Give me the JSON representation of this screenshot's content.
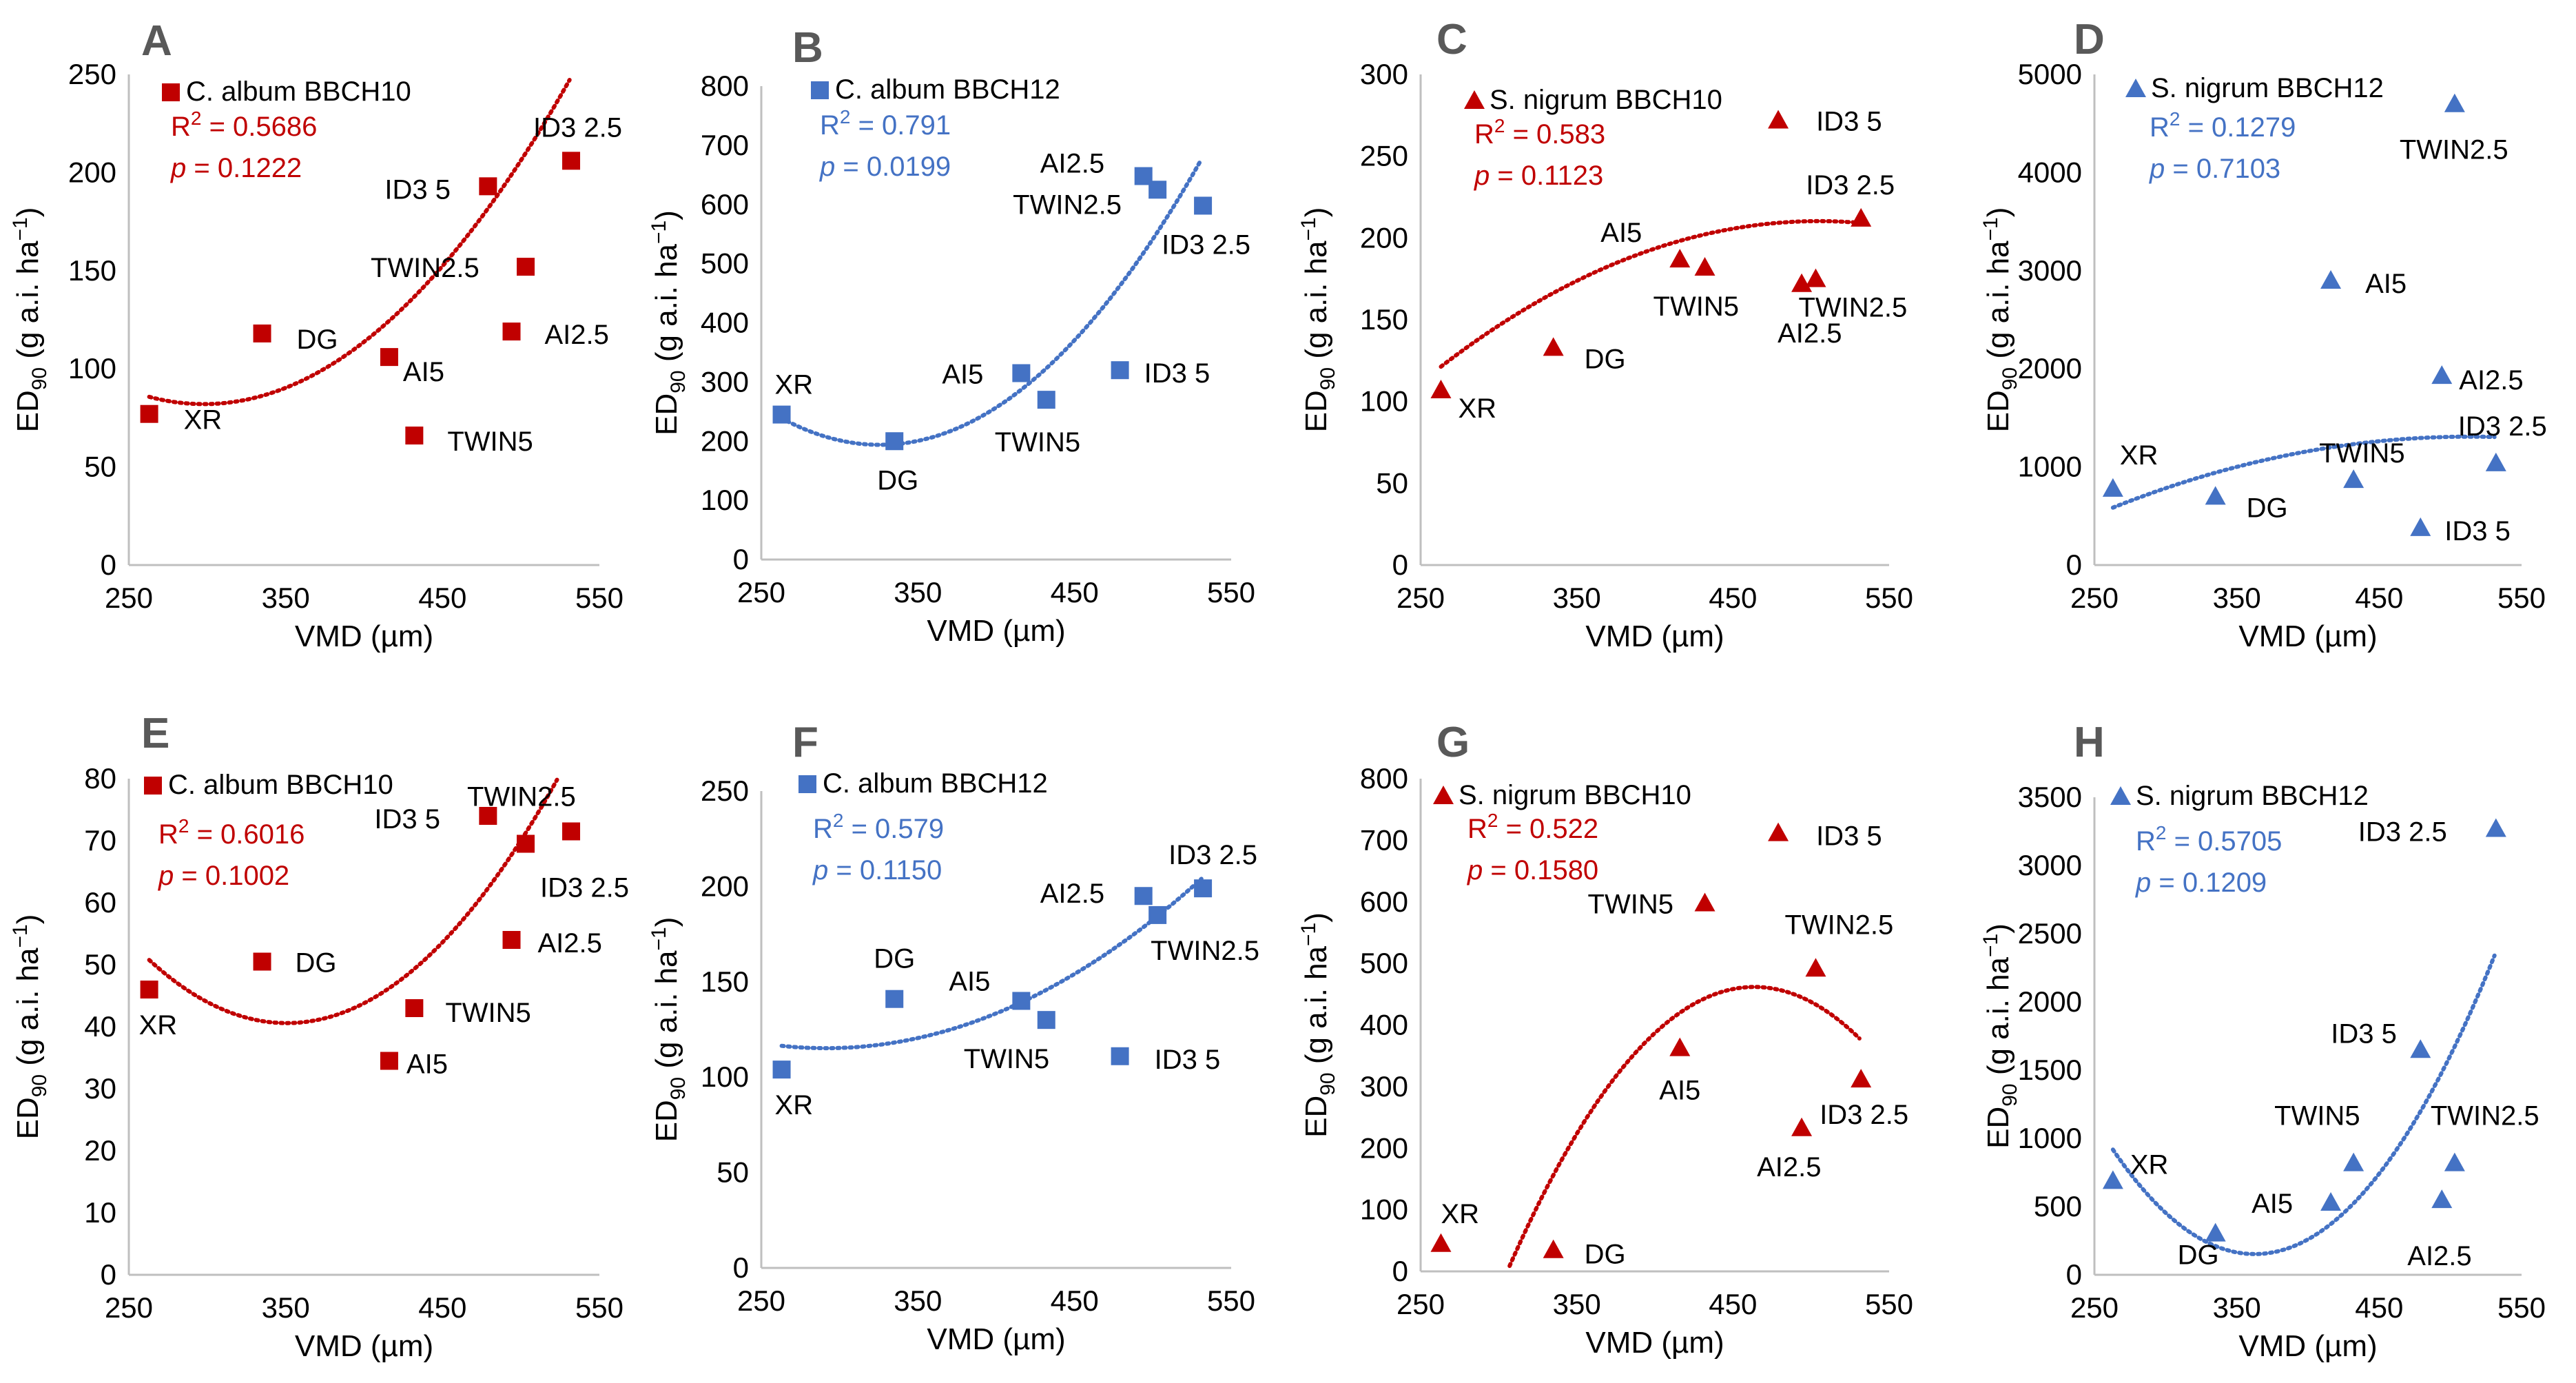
{
  "colors": {
    "red": "#c00000",
    "blue": "#4472c4",
    "axis": "#bfbfbf"
  },
  "chart_data": [
    {
      "panel": "A",
      "type": "scatter",
      "marker": "square",
      "color": "red",
      "legend": "C. album BBCH10",
      "r2_label": "R",
      "r2_value": " = 0.5686",
      "p_label": "p",
      "p_value": " = 0.1222",
      "xlabel": "VMD (µm)",
      "ylabel_main": "ED",
      "ylabel_sub": "90",
      "ylabel_rest": " (g a.i. ha",
      "ylabel_exp": "−1",
      "ylabel_close": ")",
      "xlim": [
        250,
        550
      ],
      "xticks": [
        "250",
        "350",
        "450",
        "550"
      ],
      "ylim": [
        0,
        250
      ],
      "yticks": [
        "0",
        "50",
        "100",
        "150",
        "200",
        "250"
      ],
      "points": [
        {
          "x": 263,
          "y": 77,
          "label": "XR"
        },
        {
          "x": 335,
          "y": 118,
          "label": "DG"
        },
        {
          "x": 416,
          "y": 106,
          "label": "AI5"
        },
        {
          "x": 432,
          "y": 66,
          "label": "TWIN5"
        },
        {
          "x": 479,
          "y": 193,
          "label": "ID3 5"
        },
        {
          "x": 494,
          "y": 119,
          "label": "AI2.5"
        },
        {
          "x": 503,
          "y": 152,
          "label": "TWIN2.5"
        },
        {
          "x": 532,
          "y": 206,
          "label": "ID3 2.5"
        }
      ],
      "trend": [
        0.003036,
        -1.808,
        351.2
      ]
    },
    {
      "panel": "B",
      "type": "scatter",
      "marker": "square",
      "color": "blue",
      "legend": "C. album BBCH12",
      "r2_label": "R",
      "r2_value": " = 0.791",
      "p_label": "p",
      "p_value": " = 0.0199",
      "xlabel": "VMD (µm)",
      "ylabel_main": "ED",
      "ylabel_sub": "90",
      "ylabel_rest": " (g a.i. ha",
      "ylabel_exp": "−1",
      "ylabel_close": ")",
      "xlim": [
        250,
        550
      ],
      "xticks": [
        "250",
        "350",
        "450",
        "550"
      ],
      "ylim": [
        0,
        800
      ],
      "yticks": [
        "0",
        "100",
        "200",
        "300",
        "400",
        "500",
        "600",
        "700",
        "800"
      ],
      "points": [
        {
          "x": 263,
          "y": 245,
          "label": "XR"
        },
        {
          "x": 335,
          "y": 200,
          "label": "DG"
        },
        {
          "x": 416,
          "y": 315,
          "label": "AI5"
        },
        {
          "x": 432,
          "y": 270,
          "label": "TWIN5"
        },
        {
          "x": 479,
          "y": 320,
          "label": "ID3 5"
        },
        {
          "x": 494,
          "y": 648,
          "label": "AI2.5"
        },
        {
          "x": 503,
          "y": 625,
          "label": "TWIN2.5"
        },
        {
          "x": 532,
          "y": 598,
          "label": "ID3 2.5"
        }
      ],
      "trend": [
        0.01145,
        -7.459,
        1408.6
      ]
    },
    {
      "panel": "C",
      "type": "scatter",
      "marker": "triangle",
      "color": "red",
      "legend": "S. nigrum BBCH10",
      "r2_label": "R",
      "r2_value": " = 0.583",
      "p_label": "p",
      "p_value": " = 0.1123",
      "xlabel": "VMD (µm)",
      "ylabel_main": "ED",
      "ylabel_sub": "90",
      "ylabel_rest": " (g a.i. ha",
      "ylabel_exp": "−1",
      "ylabel_close": ")",
      "xlim": [
        250,
        550
      ],
      "xticks": [
        "250",
        "350",
        "450",
        "550"
      ],
      "ylim": [
        0,
        300
      ],
      "yticks": [
        "0",
        "50",
        "100",
        "150",
        "200",
        "250",
        "300"
      ],
      "points": [
        {
          "x": 263,
          "y": 107,
          "label": "XR"
        },
        {
          "x": 335,
          "y": 133,
          "label": "DG"
        },
        {
          "x": 416,
          "y": 187,
          "label": "AI5"
        },
        {
          "x": 432,
          "y": 182,
          "label": "TWIN5"
        },
        {
          "x": 479,
          "y": 272,
          "label": "ID3 5"
        },
        {
          "x": 494,
          "y": 172,
          "label": "AI2.5"
        },
        {
          "x": 503,
          "y": 175,
          "label": "TWIN2.5"
        },
        {
          "x": 532,
          "y": 212,
          "label": "ID3 2.5"
        }
      ],
      "trend": [
        -0.001518,
        1.5335,
        -177.0
      ]
    },
    {
      "panel": "D",
      "type": "scatter",
      "marker": "triangle",
      "color": "blue",
      "legend": "S. nigrum BBCH12",
      "r2_label": "R",
      "r2_value": " = 0.1279",
      "p_label": "p",
      "p_value": " = 0.7103",
      "xlabel": "VMD (µm)",
      "ylabel_main": "ED",
      "ylabel_sub": "90",
      "ylabel_rest": " (g a.i. ha",
      "ylabel_exp": "−1",
      "ylabel_close": ")",
      "xlim": [
        250,
        550
      ],
      "xticks": [
        "250",
        "350",
        "450",
        "550"
      ],
      "ylim": [
        0,
        5000
      ],
      "yticks": [
        "0",
        "1000",
        "2000",
        "3000",
        "4000",
        "5000"
      ],
      "points": [
        {
          "x": 263,
          "y": 780,
          "label": "XR"
        },
        {
          "x": 335,
          "y": 700,
          "label": "DG"
        },
        {
          "x": 416,
          "y": 2900,
          "label": "AI5"
        },
        {
          "x": 432,
          "y": 870,
          "label": "TWIN5"
        },
        {
          "x": 479,
          "y": 380,
          "label": "ID3 5"
        },
        {
          "x": 494,
          "y": 1930,
          "label": "AI2.5"
        },
        {
          "x": 503,
          "y": 4700,
          "label": "TWIN2.5"
        },
        {
          "x": 532,
          "y": 1040,
          "label": "ID3 2.5"
        }
      ],
      "trend": [
        -0.01153,
        11.84,
        -1731.2
      ]
    },
    {
      "panel": "E",
      "type": "scatter",
      "marker": "square",
      "color": "red",
      "legend": "C. album BBCH10",
      "r2_label": "R",
      "r2_value": " = 0.6016",
      "p_label": "p",
      "p_value": " = 0.1002",
      "xlabel": "VMD (µm)",
      "ylabel_main": "ED",
      "ylabel_sub": "90",
      "ylabel_rest": " (g a.i. ha",
      "ylabel_exp": "−1",
      "ylabel_close": ")",
      "xlim": [
        250,
        550
      ],
      "xticks": [
        "250",
        "350",
        "450",
        "550"
      ],
      "ylim": [
        0,
        80
      ],
      "yticks": [
        "0",
        "10",
        "20",
        "30",
        "40",
        "50",
        "60",
        "70",
        "80"
      ],
      "points": [
        {
          "x": 263,
          "y": 46,
          "label": "XR"
        },
        {
          "x": 335,
          "y": 50.5,
          "label": "DG"
        },
        {
          "x": 416,
          "y": 34.5,
          "label": "AI5"
        },
        {
          "x": 432,
          "y": 43,
          "label": "TWIN5"
        },
        {
          "x": 479,
          "y": 74,
          "label": "ID3 5"
        },
        {
          "x": 494,
          "y": 54,
          "label": "AI2.5"
        },
        {
          "x": 503,
          "y": 69.5,
          "label": "TWIN2.5"
        },
        {
          "x": 532,
          "y": 71.5,
          "label": "ID3 2.5"
        }
      ],
      "trend": [
        0.001322,
        -0.9273,
        203.2
      ]
    },
    {
      "panel": "F",
      "type": "scatter",
      "marker": "square",
      "color": "blue",
      "legend": "C. album BBCH12",
      "r2_label": "R",
      "r2_value": " = 0.579",
      "p_label": "p",
      "p_value": " = 0.1150",
      "xlabel": "VMD (µm)",
      "ylabel_main": "ED",
      "ylabel_sub": "90",
      "ylabel_rest": " (g a.i. ha",
      "ylabel_exp": "−1",
      "ylabel_close": ")",
      "xlim": [
        250,
        550
      ],
      "xticks": [
        "250",
        "350",
        "450",
        "550"
      ],
      "ylim": [
        0,
        250
      ],
      "yticks": [
        "0",
        "50",
        "100",
        "150",
        "200",
        "250"
      ],
      "points": [
        {
          "x": 263,
          "y": 104,
          "label": "XR"
        },
        {
          "x": 335,
          "y": 141,
          "label": "DG"
        },
        {
          "x": 416,
          "y": 140,
          "label": "AI5"
        },
        {
          "x": 432,
          "y": 130,
          "label": "TWIN5"
        },
        {
          "x": 479,
          "y": 111,
          "label": "ID3 5"
        },
        {
          "x": 494,
          "y": 195,
          "label": "AI2.5"
        },
        {
          "x": 503,
          "y": 185,
          "label": "TWIN2.5"
        },
        {
          "x": 532,
          "y": 199,
          "label": "ID3 2.5"
        }
      ],
      "trend": [
        0.001545,
        -0.9001,
        246.3
      ]
    },
    {
      "panel": "G",
      "type": "scatter",
      "marker": "triangle",
      "color": "red",
      "legend": "S. nigrum BBCH10",
      "r2_label": "R",
      "r2_value": " = 0.522",
      "p_label": "p",
      "p_value": " = 0.1580",
      "xlabel": "VMD (µm)",
      "ylabel_main": "ED",
      "ylabel_sub": "90",
      "ylabel_rest": " (g a.i. ha",
      "ylabel_exp": "−1",
      "ylabel_close": ")",
      "xlim": [
        250,
        550
      ],
      "xticks": [
        "250",
        "350",
        "450",
        "550"
      ],
      "ylim": [
        0,
        800
      ],
      "yticks": [
        "0",
        "100",
        "200",
        "300",
        "400",
        "500",
        "600",
        "700",
        "800"
      ],
      "points": [
        {
          "x": 263,
          "y": 45,
          "label": "XR"
        },
        {
          "x": 335,
          "y": 35,
          "label": "DG"
        },
        {
          "x": 416,
          "y": 363,
          "label": "AI5"
        },
        {
          "x": 432,
          "y": 598,
          "label": "TWIN5"
        },
        {
          "x": 479,
          "y": 712,
          "label": "ID3 5"
        },
        {
          "x": 494,
          "y": 233,
          "label": "AI2.5"
        },
        {
          "x": 503,
          "y": 492,
          "label": "TWIN2.5"
        },
        {
          "x": 532,
          "y": 312,
          "label": "ID3 2.5"
        }
      ],
      "trend": [
        -0.01845,
        17.11,
        -3505.0
      ]
    },
    {
      "panel": "H",
      "type": "scatter",
      "marker": "triangle",
      "color": "blue",
      "legend": "S. nigrum BBCH12",
      "r2_label": "R",
      "r2_value": " = 0.5705",
      "p_label": "p",
      "p_value": " = 0.1209",
      "xlabel": "VMD (µm)",
      "ylabel_main": "ED",
      "ylabel_sub": "90",
      "ylabel_rest": " (g a.i. ha",
      "ylabel_exp": "−1",
      "ylabel_close": ")",
      "xlim": [
        250,
        550
      ],
      "xticks": [
        "250",
        "350",
        "450",
        "550"
      ],
      "ylim": [
        0,
        3500
      ],
      "yticks": [
        "0",
        "500",
        "1000",
        "1500",
        "2000",
        "2500",
        "3000",
        "3500"
      ],
      "points": [
        {
          "x": 263,
          "y": 690,
          "label": "XR"
        },
        {
          "x": 335,
          "y": 305,
          "label": "DG"
        },
        {
          "x": 416,
          "y": 530,
          "label": "AI5"
        },
        {
          "x": 432,
          "y": 820,
          "label": "TWIN5"
        },
        {
          "x": 479,
          "y": 1650,
          "label": "ID3 5"
        },
        {
          "x": 494,
          "y": 550,
          "label": "AI2.5"
        },
        {
          "x": 503,
          "y": 820,
          "label": "TWIN2.5"
        },
        {
          "x": 532,
          "y": 3270,
          "label": "ID3 2.5"
        }
      ],
      "trend": [
        0.07715,
        -55.95,
        10296.0
      ]
    }
  ]
}
